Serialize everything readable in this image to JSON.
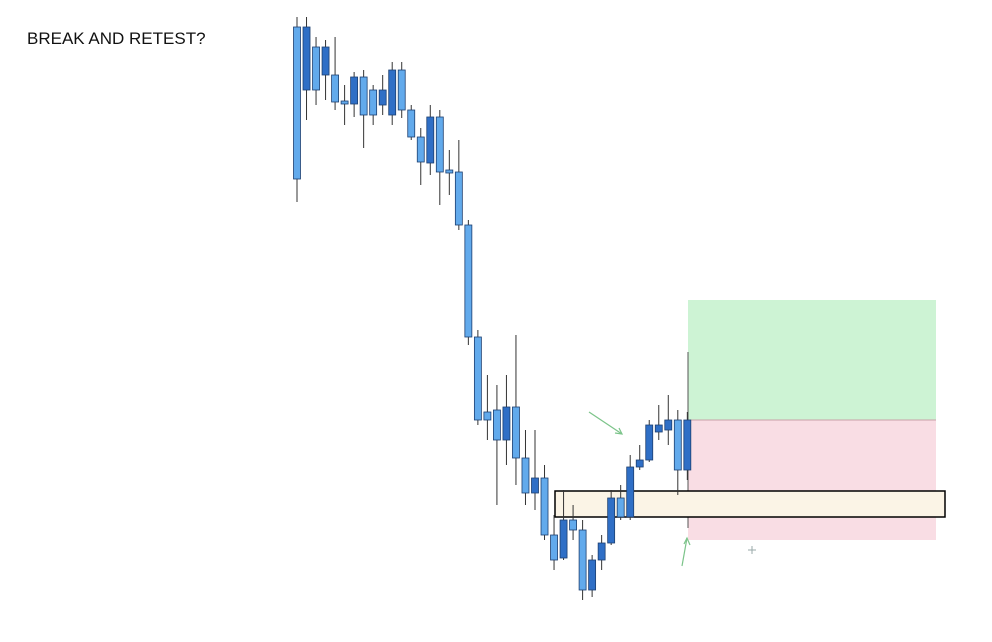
{
  "chart_data": {
    "type": "candlestick",
    "title": "BREAK AND RETEST?",
    "open": [
      615,
      552,
      595,
      567,
      567,
      541,
      538,
      565,
      552,
      537,
      527,
      572,
      532,
      505,
      479,
      525,
      472,
      470,
      417,
      305,
      230,
      232,
      202,
      235,
      184,
      149,
      164,
      107,
      84,
      122,
      112,
      52,
      82,
      99,
      144,
      125,
      175,
      182,
      210,
      212,
      222,
      172
    ],
    "close": [
      463,
      615,
      552,
      595,
      540,
      538,
      565,
      527,
      527,
      552,
      572,
      532,
      505,
      480,
      525,
      470,
      469,
      417,
      305,
      222,
      222,
      202,
      235,
      184,
      149,
      164,
      107,
      82,
      122,
      112,
      52,
      82,
      99,
      144,
      125,
      175,
      182,
      217,
      217,
      222,
      172,
      222
    ],
    "high": [
      625,
      625,
      605,
      602,
      605,
      557,
      570,
      572,
      557,
      567,
      580,
      580,
      537,
      514,
      537,
      532,
      492,
      502,
      422,
      312,
      267,
      257,
      267,
      307,
      212,
      212,
      177,
      127,
      152,
      137,
      122,
      87,
      107,
      152,
      157,
      187,
      197,
      222,
      237,
      247,
      232,
      230
    ],
    "low": [
      440,
      522,
      537,
      542,
      532,
      517,
      525,
      494,
      517,
      527,
      517,
      524,
      502,
      457,
      467,
      437,
      447,
      412,
      297,
      217,
      202,
      137,
      177,
      157,
      137,
      132,
      102,
      72,
      82,
      102,
      42,
      45,
      72,
      97,
      122,
      122,
      172,
      180,
      202,
      197,
      147,
      162
    ],
    "up_color": "#2f6fc6",
    "down_color": "#62aaec",
    "ylim": [
      0,
      642
    ]
  }
}
